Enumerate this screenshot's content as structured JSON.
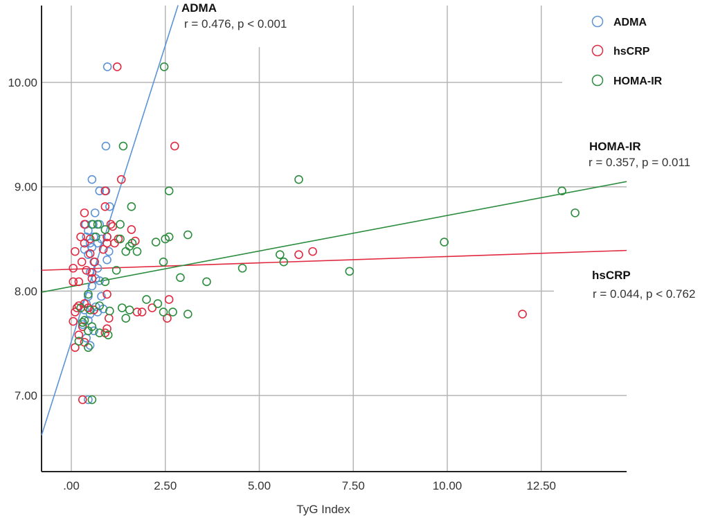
{
  "chart_data": {
    "type": "scatter",
    "title": "",
    "xlabel": "TyG Index",
    "ylabel": "",
    "xlim": [
      -0.8,
      14.8
    ],
    "ylim": [
      6.3,
      10.75
    ],
    "x_ticks": [
      0,
      2.5,
      5,
      7.5,
      10,
      12.5
    ],
    "x_tick_labels": [
      ".00",
      "2.50",
      "5.00",
      "7.50",
      "10.00",
      "12.50"
    ],
    "y_ticks": [
      7,
      8,
      9,
      10
    ],
    "y_tick_labels": [
      "7.00",
      "8.00",
      "9.00",
      "10.00"
    ],
    "grid": true,
    "legend": {
      "placement": "top-right",
      "entries": [
        {
          "name": "ADMA",
          "color": "#5b93d6"
        },
        {
          "name": "hsCRP",
          "color": "#e0283f"
        },
        {
          "name": "HOMA-IR",
          "color": "#2a8c3c"
        }
      ]
    },
    "series": [
      {
        "name": "ADMA",
        "color": "#5b93d6",
        "fit_line": {
          "x": [
            -0.79,
            2.84
          ],
          "y": [
            6.62,
            10.74
          ]
        },
        "annotation": {
          "title": "ADMA",
          "stat": "r = 0.476, p < 0.001"
        },
        "points": [
          [
            0.96,
            10.15
          ],
          [
            0.92,
            9.39
          ],
          [
            0.55,
            9.07
          ],
          [
            0.75,
            8.96
          ],
          [
            0.92,
            8.96
          ],
          [
            1.02,
            8.81
          ],
          [
            0.63,
            8.75
          ],
          [
            0.38,
            8.64
          ],
          [
            0.58,
            8.64
          ],
          [
            0.75,
            8.64
          ],
          [
            0.45,
            8.58
          ],
          [
            0.4,
            8.52
          ],
          [
            0.6,
            8.52
          ],
          [
            0.8,
            8.5
          ],
          [
            0.95,
            8.52
          ],
          [
            0.5,
            8.46
          ],
          [
            0.7,
            8.46
          ],
          [
            0.35,
            8.4
          ],
          [
            0.55,
            8.42
          ],
          [
            1.0,
            8.38
          ],
          [
            0.45,
            8.35
          ],
          [
            0.95,
            8.3
          ],
          [
            0.6,
            8.28
          ],
          [
            0.7,
            8.22
          ],
          [
            0.5,
            8.18
          ],
          [
            0.65,
            8.12
          ],
          [
            0.75,
            8.1
          ],
          [
            0.55,
            8.05
          ],
          [
            0.45,
            7.95
          ],
          [
            0.8,
            7.95
          ],
          [
            0.4,
            7.88
          ],
          [
            0.65,
            7.85
          ],
          [
            0.85,
            7.83
          ],
          [
            0.35,
            7.82
          ],
          [
            0.5,
            7.78
          ],
          [
            0.7,
            7.8
          ],
          [
            0.45,
            7.72
          ],
          [
            0.3,
            7.68
          ],
          [
            0.6,
            7.62
          ],
          [
            0.4,
            7.55
          ],
          [
            0.5,
            7.48
          ],
          [
            0.45,
            6.96
          ]
        ]
      },
      {
        "name": "hsCRP",
        "color": "#e0283f",
        "fit_line": {
          "x": [
            -0.79,
            14.77
          ],
          "y": [
            8.2,
            8.39
          ]
        },
        "annotation": {
          "title": "hsCRP",
          "stat": "r = 0.044, p < 0.762"
        },
        "points": [
          [
            1.22,
            10.15
          ],
          [
            2.75,
            9.39
          ],
          [
            1.33,
            9.07
          ],
          [
            0.9,
            8.96
          ],
          [
            0.35,
            8.75
          ],
          [
            0.9,
            8.81
          ],
          [
            0.35,
            8.64
          ],
          [
            1.05,
            8.64
          ],
          [
            1.1,
            8.62
          ],
          [
            1.6,
            8.59
          ],
          [
            0.25,
            8.52
          ],
          [
            0.5,
            8.5
          ],
          [
            0.95,
            8.52
          ],
          [
            1.25,
            8.5
          ],
          [
            1.7,
            8.48
          ],
          [
            0.35,
            8.46
          ],
          [
            0.95,
            8.46
          ],
          [
            1.15,
            8.46
          ],
          [
            0.1,
            8.38
          ],
          [
            0.85,
            8.4
          ],
          [
            0.5,
            8.36
          ],
          [
            0.28,
            8.28
          ],
          [
            0.62,
            8.28
          ],
          [
            0.05,
            8.22
          ],
          [
            0.55,
            8.18
          ],
          [
            0.4,
            8.2
          ],
          [
            0.05,
            8.09
          ],
          [
            0.2,
            8.09
          ],
          [
            0.55,
            8.12
          ],
          [
            0.95,
            7.97
          ],
          [
            0.35,
            7.88
          ],
          [
            0.15,
            7.84
          ],
          [
            0.2,
            7.86
          ],
          [
            0.1,
            7.8
          ],
          [
            0.45,
            7.84
          ],
          [
            0.6,
            7.82
          ],
          [
            1.75,
            7.8
          ],
          [
            1.88,
            7.8
          ],
          [
            2.15,
            7.84
          ],
          [
            2.6,
            7.92
          ],
          [
            0.05,
            7.71
          ],
          [
            1.0,
            7.74
          ],
          [
            2.55,
            7.74
          ],
          [
            0.3,
            7.66
          ],
          [
            0.95,
            7.64
          ],
          [
            0.2,
            7.58
          ],
          [
            0.9,
            7.6
          ],
          [
            0.35,
            7.51
          ],
          [
            0.1,
            7.46
          ],
          [
            0.3,
            6.96
          ],
          [
            6.05,
            8.35
          ],
          [
            6.42,
            8.38
          ],
          [
            12.0,
            7.78
          ]
        ]
      },
      {
        "name": "HOMA-IR",
        "color": "#2a8c3c",
        "fit_line": {
          "x": [
            -0.79,
            14.77
          ],
          "y": [
            7.99,
            9.05
          ]
        },
        "annotation": {
          "title": "HOMA-IR",
          "stat": "r = 0.357, p = 0.011"
        },
        "points": [
          [
            2.47,
            10.15
          ],
          [
            1.38,
            9.39
          ],
          [
            2.6,
            8.96
          ],
          [
            6.05,
            9.07
          ],
          [
            13.05,
            8.96
          ],
          [
            13.4,
            8.75
          ],
          [
            1.6,
            8.81
          ],
          [
            0.55,
            8.64
          ],
          [
            0.7,
            8.64
          ],
          [
            1.3,
            8.64
          ],
          [
            0.9,
            8.59
          ],
          [
            0.65,
            8.52
          ],
          [
            1.3,
            8.5
          ],
          [
            2.25,
            8.47
          ],
          [
            2.5,
            8.5
          ],
          [
            2.6,
            8.52
          ],
          [
            3.1,
            8.54
          ],
          [
            1.55,
            8.43
          ],
          [
            1.45,
            8.38
          ],
          [
            1.75,
            8.38
          ],
          [
            1.62,
            8.46
          ],
          [
            1.2,
            8.2
          ],
          [
            2.45,
            8.28
          ],
          [
            2.9,
            8.13
          ],
          [
            3.6,
            8.09
          ],
          [
            4.55,
            8.22
          ],
          [
            5.55,
            8.35
          ],
          [
            5.65,
            8.28
          ],
          [
            7.4,
            8.19
          ],
          [
            9.92,
            8.47
          ],
          [
            0.9,
            8.09
          ],
          [
            0.45,
            7.97
          ],
          [
            0.25,
            7.84
          ],
          [
            0.5,
            7.82
          ],
          [
            0.75,
            7.86
          ],
          [
            1.35,
            7.84
          ],
          [
            1.55,
            7.82
          ],
          [
            2.0,
            7.92
          ],
          [
            2.3,
            7.88
          ],
          [
            2.45,
            7.8
          ],
          [
            2.7,
            7.8
          ],
          [
            3.1,
            7.78
          ],
          [
            0.35,
            7.72
          ],
          [
            1.02,
            7.81
          ],
          [
            1.45,
            7.74
          ],
          [
            0.3,
            7.7
          ],
          [
            0.55,
            7.66
          ],
          [
            0.45,
            7.62
          ],
          [
            0.75,
            7.6
          ],
          [
            0.98,
            7.58
          ],
          [
            0.2,
            7.52
          ],
          [
            0.45,
            7.46
          ],
          [
            0.55,
            6.96
          ]
        ]
      }
    ]
  }
}
